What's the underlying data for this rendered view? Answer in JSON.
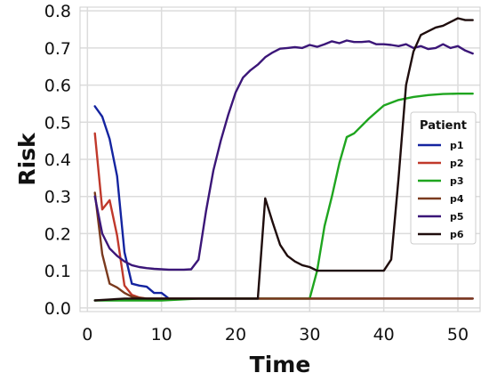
{
  "chart_data": {
    "type": "line",
    "xlabel": "Time",
    "ylabel": "Risk",
    "xlim": [
      -1,
      53
    ],
    "ylim": [
      -0.01,
      0.81
    ],
    "xticks": [
      0,
      10,
      20,
      30,
      40,
      50
    ],
    "yticks": [
      0.0,
      0.1,
      0.2,
      0.3,
      0.4,
      0.5,
      0.6,
      0.7,
      0.8
    ],
    "grid": true,
    "legend": {
      "title": "Patient",
      "placement": "right"
    },
    "series": [
      {
        "name": "p1",
        "color": "#1424a0",
        "x": [
          1,
          2,
          3,
          4,
          5,
          6,
          7,
          8,
          9,
          10,
          11,
          12,
          15,
          20,
          25,
          30,
          35,
          40,
          45,
          50,
          52
        ],
        "y": [
          0.543,
          0.515,
          0.455,
          0.355,
          0.15,
          0.065,
          0.06,
          0.057,
          0.04,
          0.04,
          0.025,
          0.025,
          0.025,
          0.025,
          0.025,
          0.025,
          0.025,
          0.025,
          0.025,
          0.025,
          0.025
        ]
      },
      {
        "name": "p2",
        "color": "#c0392b",
        "x": [
          1,
          2,
          3,
          4,
          5,
          6,
          7,
          8,
          10,
          15,
          20,
          25,
          30,
          35,
          40,
          45,
          50,
          52
        ],
        "y": [
          0.47,
          0.265,
          0.29,
          0.195,
          0.06,
          0.035,
          0.028,
          0.025,
          0.025,
          0.025,
          0.025,
          0.025,
          0.025,
          0.025,
          0.025,
          0.025,
          0.025,
          0.025
        ]
      },
      {
        "name": "p3",
        "color": "#1fa51f",
        "x": [
          1,
          5,
          10,
          15,
          20,
          25,
          30,
          31,
          32,
          33,
          34,
          35,
          36,
          38,
          40,
          42,
          44,
          46,
          48,
          50,
          52
        ],
        "y": [
          0.02,
          0.02,
          0.02,
          0.025,
          0.025,
          0.025,
          0.025,
          0.1,
          0.22,
          0.3,
          0.39,
          0.46,
          0.47,
          0.51,
          0.545,
          0.56,
          0.568,
          0.573,
          0.576,
          0.577,
          0.577
        ]
      },
      {
        "name": "p4",
        "color": "#7a3a1e",
        "x": [
          1,
          2,
          3,
          4,
          5,
          6,
          7,
          8,
          10,
          15,
          20,
          25,
          30,
          35,
          40,
          45,
          50,
          52
        ],
        "y": [
          0.31,
          0.145,
          0.065,
          0.055,
          0.04,
          0.03,
          0.027,
          0.025,
          0.025,
          0.025,
          0.025,
          0.025,
          0.025,
          0.025,
          0.025,
          0.025,
          0.025,
          0.025
        ]
      },
      {
        "name": "p5",
        "color": "#3b1678",
        "x": [
          1,
          2,
          3,
          4,
          5,
          6,
          7,
          8,
          9,
          10,
          11,
          12,
          13,
          14,
          15,
          16,
          17,
          18,
          19,
          20,
          21,
          22,
          23,
          24,
          25,
          26,
          27,
          28,
          29,
          30,
          31,
          32,
          33,
          34,
          35,
          36,
          37,
          38,
          39,
          40,
          41,
          42,
          43,
          44,
          45,
          46,
          47,
          48,
          49,
          50,
          51,
          52
        ],
        "y": [
          0.3,
          0.2,
          0.16,
          0.14,
          0.125,
          0.115,
          0.11,
          0.107,
          0.105,
          0.104,
          0.103,
          0.103,
          0.103,
          0.104,
          0.13,
          0.26,
          0.37,
          0.45,
          0.52,
          0.58,
          0.62,
          0.64,
          0.655,
          0.675,
          0.688,
          0.698,
          0.7,
          0.702,
          0.7,
          0.708,
          0.703,
          0.71,
          0.718,
          0.713,
          0.72,
          0.716,
          0.716,
          0.718,
          0.71,
          0.71,
          0.708,
          0.705,
          0.71,
          0.7,
          0.705,
          0.697,
          0.7,
          0.71,
          0.7,
          0.705,
          0.693,
          0.685
        ]
      },
      {
        "name": "p6",
        "color": "#1f0d0d",
        "x": [
          1,
          5,
          10,
          15,
          20,
          23,
          24,
          25,
          26,
          27,
          28,
          29,
          30,
          31,
          32,
          35,
          40,
          41,
          42,
          43,
          44,
          45,
          46,
          47,
          48,
          49,
          50,
          51,
          52
        ],
        "y": [
          0.02,
          0.025,
          0.025,
          0.025,
          0.025,
          0.025,
          0.295,
          0.23,
          0.17,
          0.14,
          0.125,
          0.115,
          0.11,
          0.1,
          0.1,
          0.1,
          0.1,
          0.13,
          0.35,
          0.6,
          0.69,
          0.735,
          0.745,
          0.755,
          0.76,
          0.77,
          0.78,
          0.775,
          0.775
        ]
      }
    ]
  }
}
